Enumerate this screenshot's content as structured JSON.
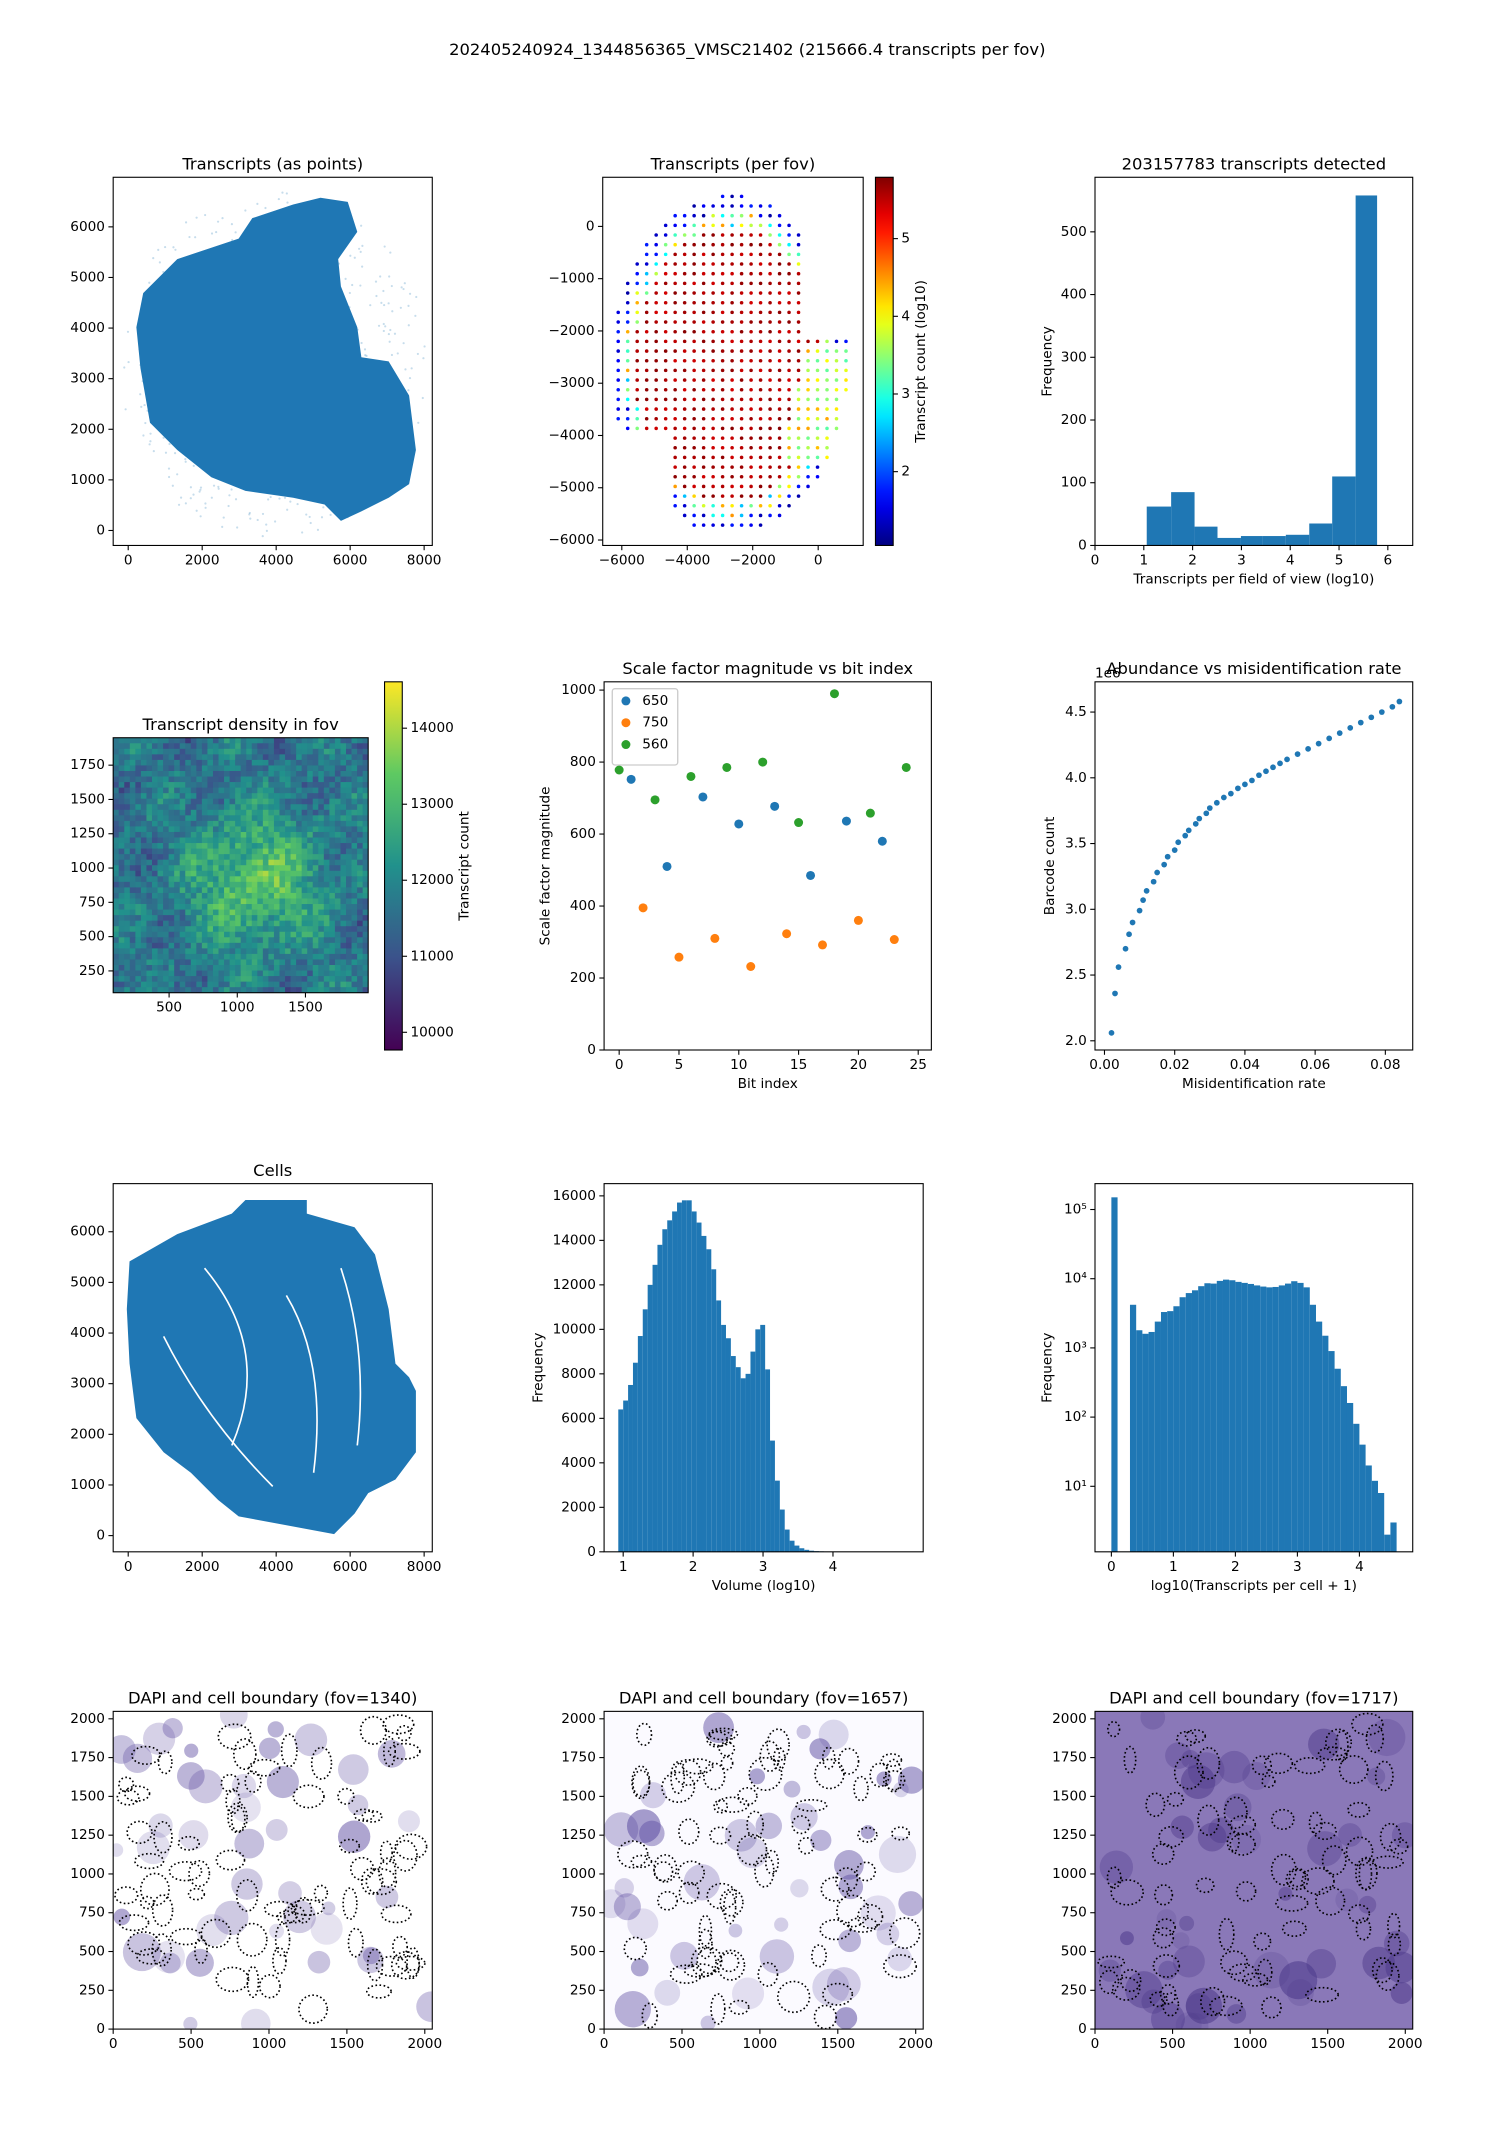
{
  "title": "202405240924_1344856365_VMSC21402 (215666.4 transcripts per fov)",
  "chart_data": [
    {
      "type": "spatial",
      "title": "Transcripts (as points)",
      "color": "#1f77b4",
      "xlim": [
        -406,
        8220
      ],
      "ylim": [
        -296,
        6980
      ],
      "xticks": [
        0,
        2000,
        4000,
        6000,
        8000
      ],
      "yticks": [
        0,
        1000,
        2000,
        3000,
        4000,
        5000,
        6000
      ]
    },
    {
      "type": "fov_scatter",
      "title": "Transcripts (per fov)",
      "colormap": "jet",
      "xlim": [
        -6583,
        1375
      ],
      "ylim": [
        -6104,
        940
      ],
      "xticks": [
        {
          "value": -6000,
          "label": "−6000"
        },
        {
          "value": -4000,
          "label": "−4000"
        },
        {
          "value": -2000,
          "label": "−2000"
        },
        0
      ],
      "yticks": [
        {
          "value": -6000,
          "label": "−6000"
        },
        {
          "value": -5000,
          "label": "−5000"
        },
        {
          "value": -4000,
          "label": "−4000"
        },
        {
          "value": -3000,
          "label": "−3000"
        },
        {
          "value": -2000,
          "label": "−2000"
        },
        {
          "value": -1000,
          "label": "−1000"
        },
        0
      ],
      "colorbar": {
        "label": "Transcript count (log10)",
        "lim": [
          1.05,
          5.79
        ],
        "ticks": [
          2,
          3,
          4,
          5
        ]
      }
    },
    {
      "type": "histogram",
      "title": "203157783 transcripts detected",
      "color": "#1f77b4",
      "xlabel": "Transcripts per field of view (log10)",
      "ylabel": "Frequency",
      "bins": [
        1.06,
        1.56,
        2.04,
        2.51,
        2.99,
        3.44,
        3.91,
        4.39,
        4.86,
        5.34,
        5.78
      ],
      "values": [
        62,
        85,
        30,
        12,
        15,
        15,
        17,
        35,
        110,
        558
      ],
      "xlim": [
        0,
        6.51
      ],
      "ylim": [
        0,
        587
      ],
      "xticks": [
        0,
        1,
        2,
        3,
        4,
        5,
        6
      ],
      "yticks": [
        0,
        100,
        200,
        300,
        400,
        500
      ]
    },
    {
      "type": "heatmap",
      "title": "Transcript density in fov",
      "colormap": "viridis",
      "xlim": [
        90,
        1960
      ],
      "ylim": [
        91,
        1950
      ],
      "xticks": [
        500,
        1000,
        1500
      ],
      "yticks": [
        250,
        500,
        750,
        1000,
        1250,
        1500,
        1750
      ],
      "colorbar": {
        "label": "Transcript count",
        "lim": [
          9767,
          14610
        ],
        "ticks": [
          10000,
          11000,
          12000,
          13000,
          14000
        ]
      }
    },
    {
      "type": "scatter",
      "title": "Scale factor magnitude vs bit index",
      "xlabel": "Bit index",
      "ylabel": "Scale factor magnitude",
      "legend": "upper left",
      "xlim": [
        -1.26,
        26.1
      ],
      "ylim": [
        0,
        1023
      ],
      "xticks": [
        0,
        5,
        10,
        15,
        20,
        25
      ],
      "yticks": [
        0,
        200,
        400,
        600,
        800,
        1000
      ],
      "series": [
        {
          "name": "650",
          "color": "#1f77b4",
          "x": [
            1,
            4,
            7,
            10,
            13,
            16,
            19,
            22
          ],
          "values": [
            752,
            510,
            703,
            628,
            677,
            485,
            636,
            580
          ]
        },
        {
          "name": "750",
          "color": "#ff7f0e",
          "x": [
            2,
            5,
            8,
            11,
            14,
            17,
            20,
            23
          ],
          "values": [
            395,
            258,
            310,
            232,
            323,
            292,
            360,
            307
          ]
        },
        {
          "name": "560",
          "color": "#2ca02c",
          "x": [
            0,
            3,
            6,
            9,
            12,
            15,
            18,
            21,
            24
          ],
          "values": [
            778,
            695,
            760,
            785,
            800,
            632,
            990,
            658,
            785
          ]
        }
      ]
    },
    {
      "type": "scatter",
      "title": "Abundance vs misidentification rate",
      "xlabel": "Misidentification rate",
      "ylabel": "Barcode count",
      "y_offset_text": "1e6",
      "xlim": [
        -0.0027,
        0.0878
      ],
      "ylim": [
        1.93,
        4.73
      ],
      "xticks": [
        {
          "value": 0,
          "label": "0.00"
        },
        {
          "value": 0.02,
          "label": "0.02"
        },
        {
          "value": 0.04,
          "label": "0.04"
        },
        {
          "value": 0.06,
          "label": "0.06"
        },
        {
          "value": 0.08,
          "label": "0.08"
        }
      ],
      "yticks": [
        {
          "value": 2,
          "label": "2.0"
        },
        2.5,
        {
          "value": 3,
          "label": "3.0"
        },
        3.5,
        {
          "value": 4,
          "label": "4.0"
        },
        4.5
      ],
      "series": [
        {
          "color": "#1f77b4",
          "x": [
            0.002,
            0.003,
            0.004,
            0.006,
            0.007,
            0.008,
            0.01,
            0.011,
            0.012,
            0.014,
            0.015,
            0.017,
            0.018,
            0.02,
            0.021,
            0.023,
            0.024,
            0.026,
            0.027,
            0.029,
            0.03,
            0.032,
            0.034,
            0.036,
            0.038,
            0.04,
            0.042,
            0.044,
            0.046,
            0.048,
            0.05,
            0.052,
            0.055,
            0.058,
            0.061,
            0.064,
            0.067,
            0.07,
            0.073,
            0.076,
            0.079,
            0.082,
            0.084
          ],
          "values": [
            2.06,
            2.36,
            2.56,
            2.7,
            2.81,
            2.9,
            2.99,
            3.07,
            3.14,
            3.21,
            3.28,
            3.34,
            3.4,
            3.45,
            3.51,
            3.56,
            3.6,
            3.65,
            3.69,
            3.73,
            3.77,
            3.81,
            3.85,
            3.88,
            3.92,
            3.95,
            3.98,
            4.02,
            4.05,
            4.08,
            4.11,
            4.14,
            4.18,
            4.22,
            4.26,
            4.3,
            4.34,
            4.38,
            4.42,
            4.46,
            4.5,
            4.54,
            4.58
          ]
        }
      ]
    },
    {
      "type": "spatial",
      "title": "Cells",
      "color": "#1f77b4",
      "xlim": [
        -406,
        8220
      ],
      "ylim": [
        -320,
        6950
      ],
      "xticks": [
        0,
        2000,
        4000,
        6000,
        8000
      ],
      "yticks": [
        0,
        1000,
        2000,
        3000,
        4000,
        5000,
        6000
      ]
    },
    {
      "type": "histogram",
      "color": "#1f77b4",
      "xlabel": "Volume (log10)",
      "ylabel": "Frequency",
      "bins": [
        0.93,
        1.0,
        1.07,
        1.14,
        1.21,
        1.28,
        1.35,
        1.42,
        1.49,
        1.56,
        1.63,
        1.7,
        1.77,
        1.84,
        1.91,
        1.98,
        2.05,
        2.12,
        2.19,
        2.26,
        2.33,
        2.4,
        2.47,
        2.54,
        2.61,
        2.68,
        2.75,
        2.82,
        2.89,
        2.96,
        3.03,
        3.1,
        3.17,
        3.24,
        3.31,
        3.38,
        3.45,
        3.52,
        3.59,
        3.66,
        3.73,
        3.8,
        3.87,
        3.94,
        4.01,
        4.08,
        4.15,
        4.22,
        4.29,
        4.36,
        4.43
      ],
      "values": [
        6400,
        6800,
        7500,
        8500,
        9700,
        10900,
        12000,
        12900,
        13800,
        14500,
        14900,
        15300,
        15700,
        15800,
        15800,
        15300,
        14800,
        14200,
        13600,
        12700,
        11300,
        10200,
        9600,
        8800,
        8300,
        7800,
        8000,
        9000,
        10000,
        10200,
        8200,
        5000,
        3200,
        1900,
        1000,
        500,
        280,
        160,
        90,
        50,
        30,
        20,
        12,
        8,
        5,
        3,
        2,
        1,
        1,
        1
      ],
      "xlim": [
        0.727,
        5.29
      ],
      "ylim": [
        0,
        16550
      ],
      "xticks": [
        1,
        2,
        3,
        4
      ],
      "yticks": [
        0,
        2000,
        4000,
        6000,
        8000,
        10000,
        12000,
        14000,
        16000
      ]
    },
    {
      "type": "histogram",
      "color": "#1f77b4",
      "log_y": true,
      "xlabel": "log10(Transcripts per cell + 1)",
      "ylabel": "Frequency",
      "bins": [
        0.0,
        0.1,
        0.2,
        0.3,
        0.4,
        0.5,
        0.6,
        0.7,
        0.8,
        0.9,
        1.0,
        1.1,
        1.2,
        1.3,
        1.4,
        1.5,
        1.6,
        1.7,
        1.8,
        1.9,
        2.0,
        2.1,
        2.2,
        2.3,
        2.4,
        2.5,
        2.6,
        2.7,
        2.8,
        2.9,
        3.0,
        3.1,
        3.2,
        3.3,
        3.4,
        3.5,
        3.6,
        3.7,
        3.8,
        3.9,
        4.0,
        4.1,
        4.2,
        4.3,
        4.4,
        4.5,
        4.6
      ],
      "values": [
        150000,
        0,
        0,
        4200,
        1800,
        1600,
        1700,
        2400,
        3300,
        3400,
        4000,
        5400,
        6200,
        6800,
        7800,
        8600,
        8500,
        9300,
        9700,
        9500,
        9000,
        8700,
        8400,
        8000,
        7700,
        7500,
        7600,
        8000,
        8500,
        9200,
        8700,
        7500,
        4200,
        2400,
        1500,
        900,
        500,
        280,
        160,
        80,
        40,
        20,
        12,
        8,
        2,
        3
      ],
      "xlim": [
        -0.264,
        4.86
      ],
      "ylim": [
        1.13,
        236600
      ],
      "xticks": [
        0,
        1,
        2,
        3,
        4
      ],
      "yticks": [
        {
          "value": 10,
          "label": "10¹"
        },
        {
          "value": 100,
          "label": "10²"
        },
        {
          "value": 1000,
          "label": "10³"
        },
        {
          "value": 10000,
          "label": "10⁴"
        },
        {
          "value": 100000,
          "label": "10⁵"
        }
      ]
    },
    {
      "type": "image",
      "title": "DAPI and cell boundary (fov=1340)",
      "background": "#ffffff",
      "blob_color": "#6a5aa8",
      "xlim": [
        0,
        2048
      ],
      "ylim": [
        0,
        2048
      ],
      "xticks": [
        0,
        500,
        1000,
        1500,
        2000
      ],
      "yticks": [
        0,
        250,
        500,
        750,
        1000,
        1250,
        1500,
        1750,
        2000
      ]
    },
    {
      "type": "image",
      "title": "DAPI and cell boundary (fov=1657)",
      "background": "#fbfaff",
      "blob_color": "#5a4aa0",
      "xlim": [
        0,
        2048
      ],
      "ylim": [
        0,
        2048
      ],
      "xticks": [
        0,
        500,
        1000,
        1500,
        2000
      ],
      "yticks": [
        0,
        250,
        500,
        750,
        1000,
        1250,
        1500,
        1750,
        2000
      ]
    },
    {
      "type": "image",
      "title": "DAPI and cell boundary (fov=1717)",
      "background": "#8a78b8",
      "blob_color": "#4a3688",
      "xlim": [
        0,
        2048
      ],
      "ylim": [
        0,
        2048
      ],
      "xticks": [
        0,
        500,
        1000,
        1500,
        2000
      ],
      "yticks": [
        0,
        250,
        500,
        750,
        1000,
        1250,
        1500,
        1750,
        2000
      ]
    }
  ]
}
